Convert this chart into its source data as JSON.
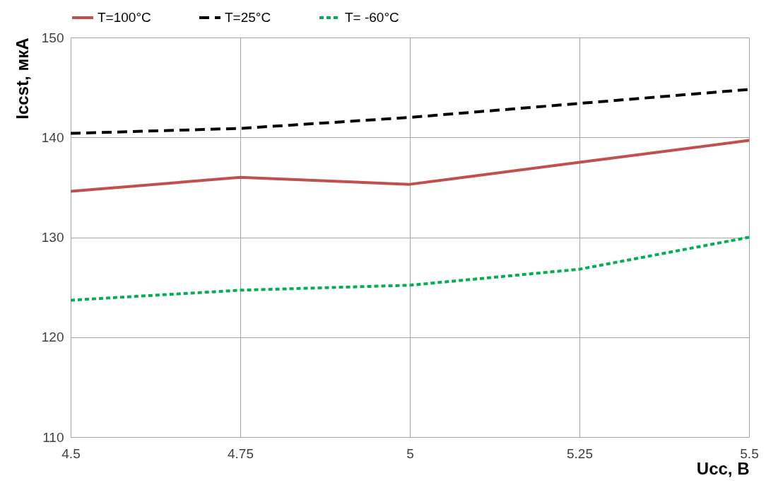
{
  "chart_data": {
    "type": "line",
    "xlabel": "Ucc, В",
    "ylabel": "Iccst,  мкА",
    "x": [
      4.5,
      4.75,
      5,
      5.25,
      5.5
    ],
    "series": [
      {
        "name": "T=100°C",
        "color": "#c0504d",
        "line_style": "solid",
        "values": [
          134.6,
          136.0,
          135.3,
          137.5,
          139.7
        ]
      },
      {
        "name": "T=25°C",
        "color": "#000000",
        "line_style": "dashed",
        "values": [
          140.4,
          140.9,
          142.0,
          143.4,
          144.8
        ]
      },
      {
        "name": "T= -60°C",
        "color": "#00b050",
        "line_style": "dotted",
        "values": [
          123.7,
          124.7,
          125.2,
          126.8,
          130.0
        ]
      }
    ],
    "xlim": [
      4.5,
      5.5
    ],
    "xticks": [
      4.5,
      4.75,
      5,
      5.25,
      5.5
    ],
    "ylim": [
      110,
      150
    ],
    "yticks": [
      110,
      120,
      130,
      140,
      150
    ],
    "grid": true,
    "legend": "top",
    "marker": "none"
  }
}
